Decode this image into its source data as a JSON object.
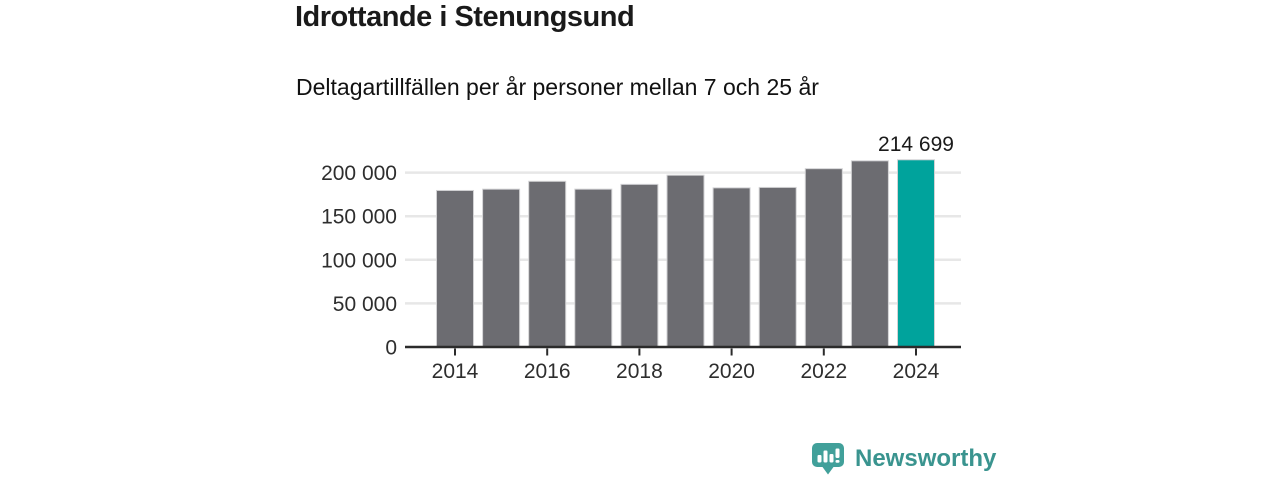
{
  "chart_data": {
    "type": "bar",
    "title": "Idrottande i Stenungsund",
    "subtitle": "Deltagartillfällen per år personer mellan 7 och 25 år",
    "categories": [
      2014,
      2015,
      2016,
      2017,
      2018,
      2019,
      2020,
      2021,
      2022,
      2023,
      2024
    ],
    "values": [
      179500,
      181000,
      190000,
      181000,
      186500,
      197000,
      182500,
      183000,
      204500,
      213500,
      214699
    ],
    "highlight_index": 10,
    "annotation": {
      "index": 10,
      "label": "214 699"
    },
    "y_ticks": [
      {
        "value": 0,
        "label": "0"
      },
      {
        "value": 50000,
        "label": "50 000"
      },
      {
        "value": 100000,
        "label": "100 000"
      },
      {
        "value": 150000,
        "label": "150 000"
      },
      {
        "value": 200000,
        "label": "200 000"
      }
    ],
    "x_ticks": [
      {
        "index": 0,
        "label": "2014"
      },
      {
        "index": 2,
        "label": "2016"
      },
      {
        "index": 4,
        "label": "2018"
      },
      {
        "index": 6,
        "label": "2020"
      },
      {
        "index": 8,
        "label": "2022"
      },
      {
        "index": 10,
        "label": "2024"
      }
    ],
    "ylim": [
      0,
      225000
    ],
    "grid": true,
    "legend": "none",
    "bar_color": "#6c6c71",
    "bar_stroke_color": "#d2d2d4",
    "highlight_color": "#00a39c",
    "grid_color": "#e7e7e7",
    "axis_color": "#2b2b2b"
  },
  "branding": {
    "logo_text": "Newsworthy",
    "logo_icon": "bar-chart-speech-bubble-icon",
    "text_color": "#3a948f",
    "icon_color": "#41a09a"
  }
}
